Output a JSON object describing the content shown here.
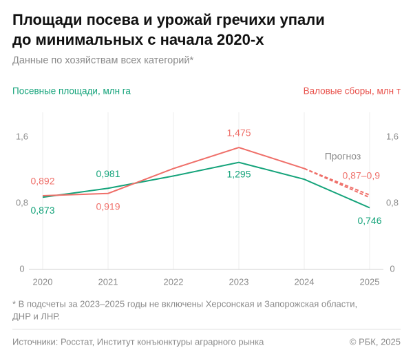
{
  "chart_data": {
    "type": "line",
    "title_lines": [
      "Площади посева и урожай гречихи упали",
      "до минимальных с начала 2020-х"
    ],
    "subtitle": "Данные по хозяйствам всех категорий*",
    "y_axis_label": "Посевные площади, млн га",
    "y2_axis_label": "Валовые сборы, млн т",
    "categories": [
      "2020",
      "2021",
      "2022",
      "2023",
      "2024",
      "2025"
    ],
    "ylim": [
      0,
      1.9
    ],
    "yticks": [
      0,
      {
        "value": 0.8,
        "label": "0,8"
      },
      {
        "value": 1.6,
        "label": "1,6"
      }
    ],
    "y2lim": [
      0,
      1.9
    ],
    "y2ticks": [
      0,
      {
        "value": 0.8,
        "label": "0,8"
      },
      {
        "value": 1.6,
        "label": "1,6"
      }
    ],
    "grid": "x",
    "series": [
      {
        "name": "Посевные площади",
        "color": "#14a37a",
        "values": [
          0.873,
          0.981,
          1.13,
          1.295,
          1.09,
          0.746
        ],
        "value_labels": [
          "0,873",
          "0,981",
          null,
          "1,295",
          null,
          "0,746"
        ]
      },
      {
        "name": "Валовые сборы",
        "color": "#ef6f69",
        "axis": "y2",
        "values": [
          0.892,
          0.919,
          1.22,
          1.475,
          1.22,
          null
        ],
        "value_labels": [
          "0,892",
          "0,919",
          null,
          "1,475",
          null,
          null
        ]
      }
    ],
    "forecast": {
      "label": "Прогноз",
      "color": "#ef6f69",
      "values": [
        0.87,
        0.9
      ],
      "value_label": "0,87–0,9"
    },
    "footnote_lines": [
      "* В подсчеты за 2023–2025 годы не включены Херсонская и Запорожская области,",
      "ДНР и ЛНР."
    ],
    "source": "Источники: Росстат, Институт конъюнктуры аграрного рынка",
    "copyright": "© РБК, 2025"
  }
}
